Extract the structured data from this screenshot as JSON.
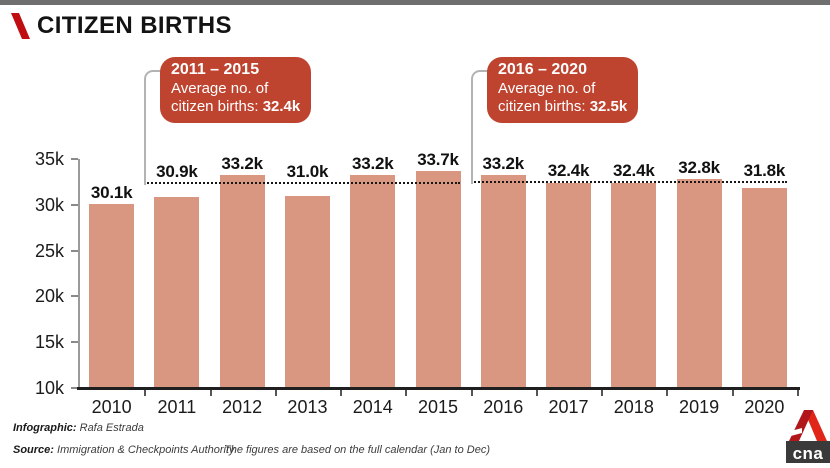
{
  "header": {
    "title": "CITIZEN BIRTHS"
  },
  "chart_data": {
    "type": "bar",
    "title": "CITIZEN BIRTHS",
    "categories": [
      "2010",
      "2011",
      "2012",
      "2013",
      "2014",
      "2015",
      "2016",
      "2017",
      "2018",
      "2019",
      "2020"
    ],
    "values": [
      30.1,
      30.9,
      33.2,
      31.0,
      33.2,
      33.7,
      33.2,
      32.4,
      32.4,
      32.8,
      31.8
    ],
    "bar_labels": [
      "30.1k",
      "30.9k",
      "33.2k",
      "31.0k",
      "33.2k",
      "33.7k",
      "33.2k",
      "32.4k",
      "32.4k",
      "32.8k",
      "31.8k"
    ],
    "xlabel": "",
    "ylabel": "",
    "ylim": [
      10,
      35
    ],
    "ytick_values": [
      35,
      30,
      25,
      20,
      15,
      10
    ],
    "ytick_labels": [
      "35k",
      "30k",
      "25k",
      "20k",
      "15k",
      "10k"
    ],
    "grid": false,
    "legend": false,
    "bar_color": "#d99680",
    "annotations": [
      {
        "period": "2011 – 2015",
        "desc_line1": "Average no. of",
        "desc_line2": "citizen births: ",
        "value": "32.4k",
        "avg_value": 32.4,
        "from": "2011",
        "to": "2015"
      },
      {
        "period": "2016 – 2020",
        "desc_line1": "Average no. of",
        "desc_line2": "citizen births: ",
        "value": "32.5k",
        "avg_value": 32.5,
        "from": "2016",
        "to": "2020"
      }
    ]
  },
  "footer": {
    "infographic_label": "Infographic:",
    "infographic_value": " Rafa Estrada",
    "source_label": "Source:",
    "source_value": " Immigration & Checkpoints Authority",
    "note": "The figures are based on the full calendar (Jan to Dec)"
  },
  "logo": {
    "brand": "cna"
  },
  "colors": {
    "bar": "#d99680",
    "callout_bg": "#bf4430",
    "accent_red": "#c00d12",
    "logo_red_bright": "#e02519",
    "logo_red_dark": "#b1161b",
    "logo_box": "#3a3a3a",
    "top_strip": "#6f6f6f",
    "dotted_line": "#161616"
  }
}
